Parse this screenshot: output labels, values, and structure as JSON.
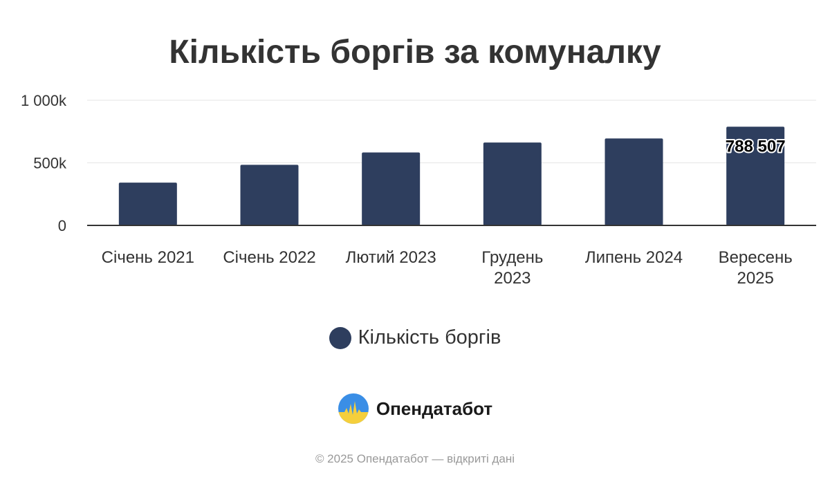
{
  "chart_data": {
    "type": "bar",
    "title": "Кількість боргів за комуналку",
    "categories": [
      [
        "Січень 2021"
      ],
      [
        "Січень 2022"
      ],
      [
        "Лютий 2023"
      ],
      [
        "Грудень",
        "2023"
      ],
      [
        "Липень 2024"
      ],
      [
        "Вересень",
        "2025"
      ]
    ],
    "series": [
      {
        "name": "Кількість боргів",
        "color": "#2e3e5e",
        "values": [
          342000,
          484000,
          583000,
          662000,
          695000,
          788507
        ]
      }
    ],
    "ylim": [
      0,
      1000000
    ],
    "yticks": [
      {
        "value": 0,
        "label": "0"
      },
      {
        "value": 500000,
        "label": "500k"
      },
      {
        "value": 1000000,
        "label": "1 000k"
      }
    ],
    "data_labels": [
      {
        "index": 5,
        "text": "788 507"
      }
    ],
    "grid": true,
    "legend_position": "bottom"
  },
  "brand": {
    "name": "Опендатабот",
    "logo_icon": "opendatabot-logo-icon"
  },
  "footer": {
    "copyright": "© 2025 Опендатабот — відкриті дані"
  }
}
